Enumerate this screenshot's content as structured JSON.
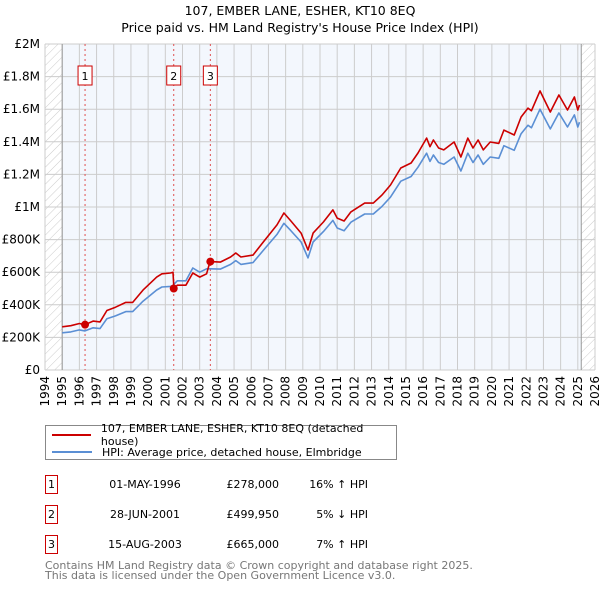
{
  "chart_data": {
    "type": "line",
    "title": "107, EMBER LANE, ESHER, KT10 8EQ",
    "subtitle": "Price paid vs. HM Land Registry's House Price Index (HPI)",
    "xlim": [
      1994,
      2026
    ],
    "ylim": [
      0,
      2000000
    ],
    "x_ticks": [
      "1994",
      "1995",
      "1996",
      "1997",
      "1998",
      "1999",
      "2000",
      "2001",
      "2002",
      "2003",
      "2004",
      "2005",
      "2006",
      "2007",
      "2008",
      "2009",
      "2010",
      "2011",
      "2012",
      "2013",
      "2014",
      "2015",
      "2016",
      "2017",
      "2018",
      "2019",
      "2020",
      "2021",
      "2022",
      "2023",
      "2024",
      "2025",
      "2026"
    ],
    "y_ticks": [
      {
        "v": 0,
        "label": "£0"
      },
      {
        "v": 200000,
        "label": "£200K"
      },
      {
        "v": 400000,
        "label": "£400K"
      },
      {
        "v": 600000,
        "label": "£600K"
      },
      {
        "v": 800000,
        "label": "£800K"
      },
      {
        "v": 1000000,
        "label": "£1M"
      },
      {
        "v": 1200000,
        "label": "£1.2M"
      },
      {
        "v": 1400000,
        "label": "£1.4M"
      },
      {
        "v": 1600000,
        "label": "£1.6M"
      },
      {
        "v": 1800000,
        "label": "£1.8M"
      },
      {
        "v": 2000000,
        "label": "£2M"
      }
    ],
    "grid": true,
    "hatched_ranges": [
      [
        1994,
        1995
      ],
      [
        2025.2,
        2026
      ]
    ],
    "x": [
      1995.0,
      1995.5,
      1996.0,
      1996.33,
      1996.8,
      1997.2,
      1997.6,
      1998.1,
      1998.7,
      1999.1,
      1999.7,
      2000.5,
      2000.8,
      2001.3,
      2001.45,
      2001.5,
      2001.7,
      2002.2,
      2002.6,
      2003.0,
      2003.4,
      2003.6,
      2004.2,
      2004.8,
      2005.1,
      2005.4,
      2006.1,
      2006.7,
      2007.5,
      2007.9,
      2008.3,
      2008.9,
      2009.3,
      2009.6,
      2010.2,
      2010.75,
      2011.0,
      2011.4,
      2011.8,
      2012.6,
      2013.1,
      2013.6,
      2014.1,
      2014.7,
      2015.3,
      2015.7,
      2016.2,
      2016.4,
      2016.6,
      2016.9,
      2017.2,
      2017.8,
      2018.2,
      2018.6,
      2018.9,
      2019.2,
      2019.5,
      2019.9,
      2020.4,
      2020.7,
      2021.3,
      2021.7,
      2022.1,
      2022.3,
      2022.8,
      2023.4,
      2023.9,
      2024.4,
      2024.8,
      2025.0,
      2025.1
    ],
    "series": [
      {
        "name": "107, EMBER LANE, ESHER, KT10 8EQ (detached house)",
        "color": "#cc0000",
        "values": [
          265000,
          272000,
          285000,
          278000,
          300000,
          295000,
          365000,
          385000,
          415000,
          415000,
          490000,
          570000,
          590000,
          595000,
          600000,
          500000,
          520000,
          520000,
          595000,
          570000,
          590000,
          665000,
          662000,
          693000,
          718000,
          693000,
          705000,
          785000,
          890000,
          963000,
          915000,
          840000,
          736000,
          840000,
          908000,
          982000,
          932000,
          914000,
          970000,
          1024000,
          1024000,
          1073000,
          1135000,
          1239000,
          1270000,
          1331000,
          1423000,
          1370000,
          1411000,
          1362000,
          1350000,
          1399000,
          1307000,
          1423000,
          1362000,
          1411000,
          1350000,
          1399000,
          1390000,
          1472000,
          1442000,
          1552000,
          1607000,
          1590000,
          1712000,
          1583000,
          1687000,
          1595000,
          1675000,
          1595000,
          1626000
        ]
      },
      {
        "name": "HPI: Average price, detached house, Elmbridge",
        "color": "#5b8fd4",
        "values": [
          228000,
          234000,
          246000,
          240000,
          259000,
          254000,
          315000,
          332000,
          358000,
          358000,
          422000,
          491000,
          509000,
          513000,
          517000,
          526000,
          547000,
          547000,
          626000,
          600000,
          621000,
          621000,
          619000,
          648000,
          671000,
          648000,
          659000,
          734000,
          832000,
          900000,
          855000,
          785000,
          688000,
          785000,
          849000,
          918000,
          871000,
          854000,
          907000,
          957000,
          957000,
          1003000,
          1061000,
          1158000,
          1187000,
          1244000,
          1330000,
          1280000,
          1319000,
          1273000,
          1262000,
          1307000,
          1221000,
          1330000,
          1273000,
          1319000,
          1262000,
          1307000,
          1299000,
          1376000,
          1348000,
          1450000,
          1502000,
          1486000,
          1600000,
          1479000,
          1577000,
          1491000,
          1565000,
          1491000,
          1520000
        ]
      }
    ],
    "sales": [
      {
        "id": "1",
        "x": 1996.33,
        "price": 278000,
        "date": "01-MAY-1996",
        "price_label": "£278,000",
        "hpi": "16% ↑ HPI"
      },
      {
        "id": "2",
        "x": 2001.49,
        "price": 499950,
        "date": "28-JUN-2001",
        "price_label": "£499,950",
        "hpi": "5% ↓ HPI"
      },
      {
        "id": "3",
        "x": 2003.62,
        "price": 665000,
        "date": "15-AUG-2003",
        "price_label": "£665,000",
        "hpi": "7% ↑ HPI"
      }
    ],
    "legend_position": "below"
  },
  "footer": {
    "line1": "Contains HM Land Registry data © Crown copyright and database right 2025.",
    "line2": "This data is licensed under the Open Government Licence v3.0."
  }
}
